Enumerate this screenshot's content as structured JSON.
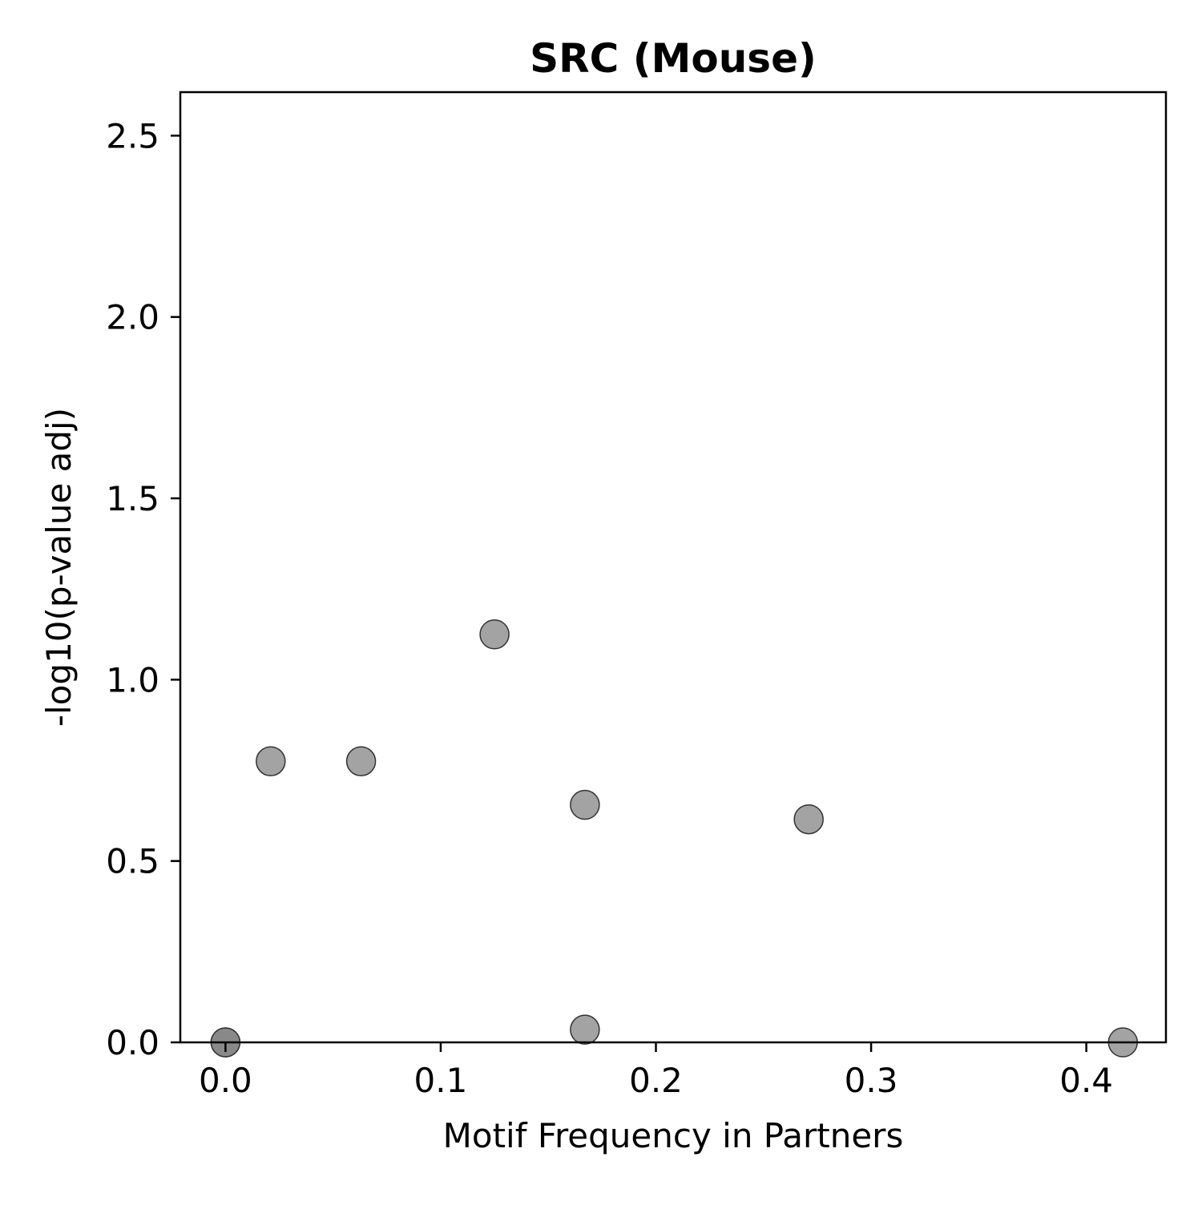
{
  "chart_data": {
    "type": "scatter",
    "title": "SRC (Mouse)",
    "xlabel": "Motif Frequency in Partners",
    "ylabel": "-log10(p-value adj)",
    "xlim": [
      -0.021,
      0.437
    ],
    "ylim": [
      0,
      2.62
    ],
    "xticks": [
      0.0,
      0.1,
      0.2,
      0.3,
      0.4
    ],
    "xtick_labels": [
      "0.0",
      "0.1",
      "0.2",
      "0.3",
      "0.4"
    ],
    "yticks": [
      0.0,
      0.5,
      1.0,
      1.5,
      2.0,
      2.5
    ],
    "ytick_labels": [
      "0.0",
      "0.5",
      "1.0",
      "1.5",
      "2.0",
      "2.5"
    ],
    "grid": false,
    "legend": "none",
    "marker_color": "#808080",
    "marker_edge_color": "#333333",
    "points": [
      {
        "x": 0.0,
        "y": 0.0
      },
      {
        "x": 0.0,
        "y": 0.0
      },
      {
        "x": 0.021,
        "y": 0.775
      },
      {
        "x": 0.063,
        "y": 0.775
      },
      {
        "x": 0.125,
        "y": 1.125
      },
      {
        "x": 0.167,
        "y": 0.655
      },
      {
        "x": 0.167,
        "y": 0.035
      },
      {
        "x": 0.271,
        "y": 0.615
      },
      {
        "x": 0.417,
        "y": 0.0
      }
    ]
  }
}
